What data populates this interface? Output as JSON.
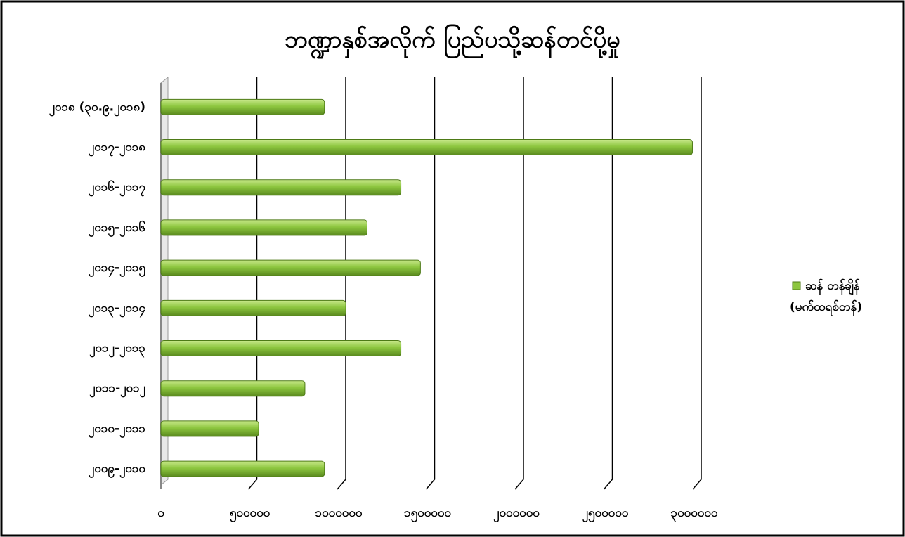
{
  "chart_data": {
    "type": "bar",
    "orientation": "horizontal",
    "title": "ဘဏ္ဍာနှစ်အလိုက် ပြည်ပသို့ဆန်တင်ပို့မှု",
    "categories": [
      "၂၀၁၈ (၃၀.၉.၂၀၁၈)",
      "၂၀၁၇-၂၀၁၈",
      "၂၀၁၆-၂၀၁၇",
      "၂၀၁၅-၂၀၁၆",
      "၂၀၁၄-၂၀၁၅",
      "၂၀၁၃-၂၀၁၄",
      "၂၀၁၂-၂၀၁၃",
      "၂၀၁၁-၂၀၁၂",
      "၂၀၁၀-၂၀၁၁",
      "၂၀၀၉-၂၀၁၀"
    ],
    "series": [
      {
        "name": "ဆန် တန်ချိန် (မက်ထရစ်တန်)",
        "color": "#8dc63f",
        "values": [
          920000,
          2990000,
          1350000,
          1160000,
          1460000,
          1040000,
          1350000,
          810000,
          550000,
          920000
        ]
      }
    ],
    "xlim": [
      0,
      3000000
    ],
    "xticks": [
      {
        "value": 0,
        "label": "၀"
      },
      {
        "value": 500000,
        "label": "၅၀၀၀၀၀"
      },
      {
        "value": 1000000,
        "label": "၁၀၀၀၀၀၀"
      },
      {
        "value": 1500000,
        "label": "၁၅၀၀၀၀၀"
      },
      {
        "value": 2000000,
        "label": "၂၀၀၀၀၀၀"
      },
      {
        "value": 2500000,
        "label": "၂၅၀၀၀၀၀"
      },
      {
        "value": 3000000,
        "label": "၃၀၀၀၀၀၀"
      }
    ],
    "grid": true,
    "legend": "right"
  }
}
